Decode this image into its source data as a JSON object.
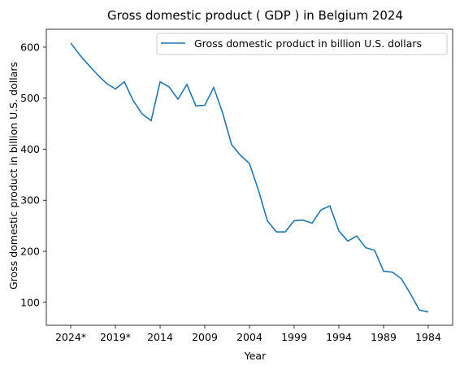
{
  "chart_data": {
    "type": "line",
    "title": "Gross domestic product ( GDP ) in Belgium 2024",
    "xlabel": "Year",
    "ylabel": "Gross domestic product in billion U.S. dollars",
    "x": [
      "2024*",
      "2023*",
      "2022*",
      "2021*",
      "2020*",
      "2019*",
      "2018",
      "2017",
      "2016",
      "2015",
      "2014",
      "2013",
      "2012",
      "2011",
      "2010",
      "2009",
      "2008",
      "2007",
      "2006",
      "2005",
      "2004",
      "2003",
      "2002",
      "2001",
      "2000",
      "1999",
      "1998",
      "1997",
      "1996",
      "1995",
      "1994",
      "1993",
      "1992",
      "1991",
      "1990",
      "1989",
      "1988",
      "1987",
      "1986",
      "1985",
      "1984"
    ],
    "x_ticks": [
      "2024*",
      "2019*",
      "2014",
      "2009",
      "2004",
      "1999",
      "1994",
      "1989",
      "1984"
    ],
    "y_ticks": [
      100,
      200,
      300,
      400,
      500,
      600
    ],
    "ylim": [
      55,
      635
    ],
    "grid": false,
    "legend_position": "top-right",
    "series": [
      {
        "name": "Gross domestic product in billion U.S. dollars",
        "color": "#1f77b4",
        "values": [
          608,
          585,
          565,
          546,
          529,
          518,
          532,
          495,
          469,
          456,
          532,
          522,
          498,
          527,
          485,
          486,
          521,
          471,
          409,
          388,
          372,
          320,
          260,
          238,
          238,
          260,
          261,
          255,
          281,
          289,
          240,
          220,
          230,
          207,
          202,
          161,
          159,
          146,
          117,
          85,
          81
        ]
      }
    ]
  }
}
